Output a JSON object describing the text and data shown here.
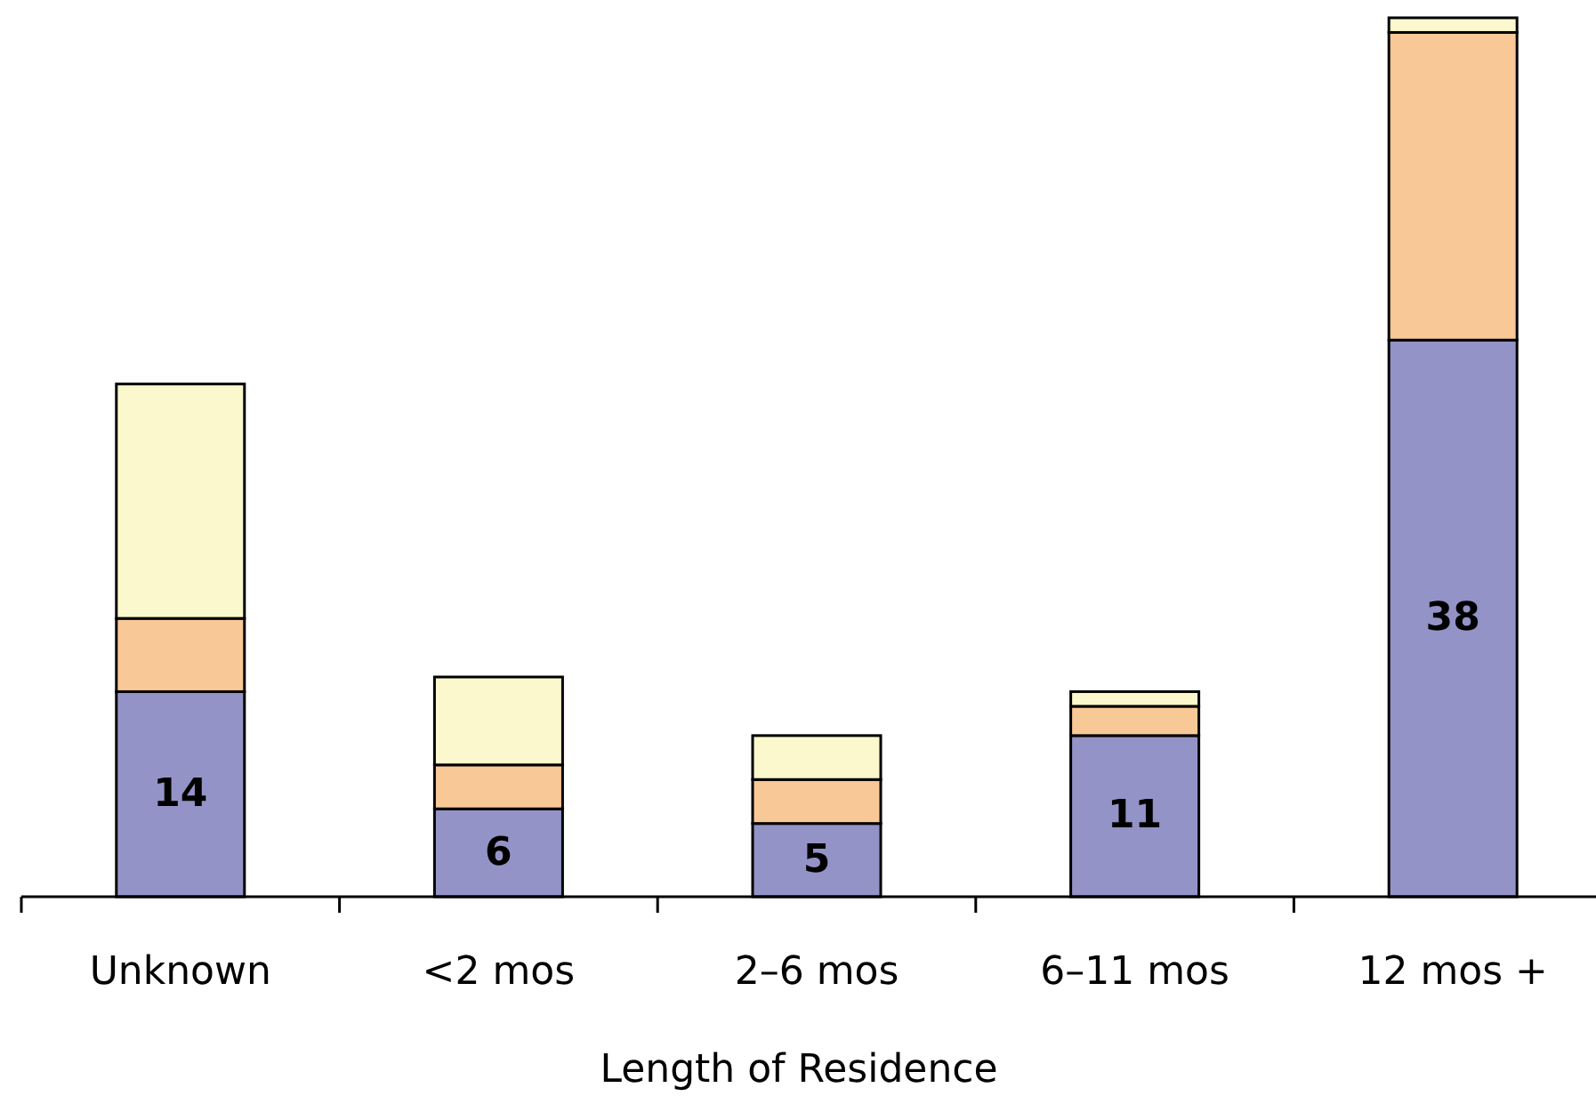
{
  "chart_data": {
    "type": "bar",
    "stacked": true,
    "xlabel": "Length of Residence",
    "categories": [
      "Unknown",
      "<2 mos",
      "2–6 mos",
      "6–11 mos",
      "12 mos +"
    ],
    "ylim": [
      0,
      60
    ],
    "tick_labels": "x",
    "series": [
      {
        "color": "#9493c7",
        "values": [
          14,
          6,
          5,
          11,
          38
        ],
        "value_labels": [
          "14",
          "6",
          "5",
          "11",
          "38"
        ]
      },
      {
        "color": "#f9c897",
        "values": [
          5,
          3,
          3,
          2,
          21
        ]
      },
      {
        "color": "#faf8cc",
        "values": [
          16,
          6,
          3,
          1,
          1
        ]
      }
    ]
  }
}
